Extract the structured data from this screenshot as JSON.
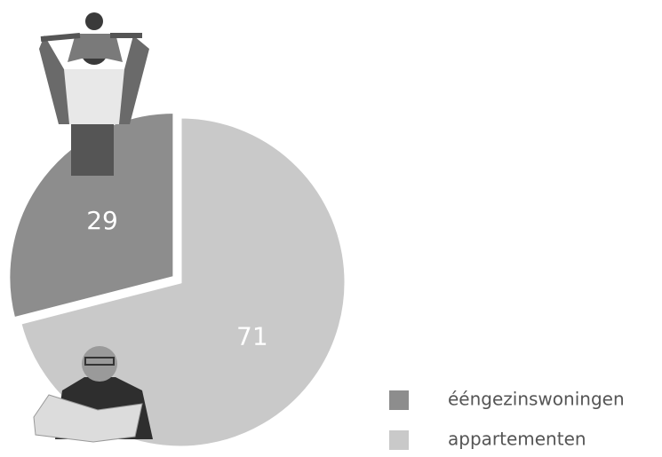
{
  "chart_data": {
    "type": "pie",
    "categories": [
      "ééngezinswoningen",
      "appartementen"
    ],
    "values": [
      29,
      71
    ],
    "colors": [
      "#8d8d8d",
      "#c9c9c9"
    ]
  }
}
